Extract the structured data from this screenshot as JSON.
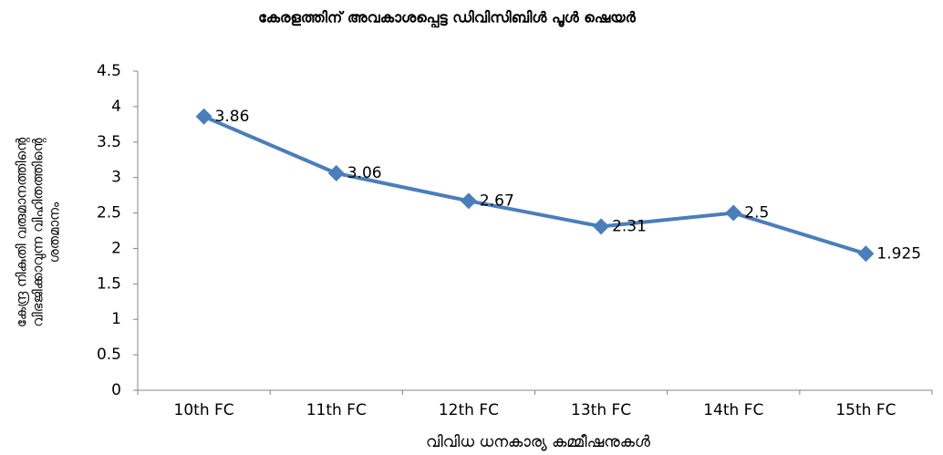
{
  "chart_data": {
    "type": "line",
    "title": "കേരളത്തിന് അവകാശപ്പെട്ട ഡിവിസിബിൾ പൂൾ ഷെയർ",
    "ylabel": [
      "കേന്ദ്ര നികുതി വരുമാനത്തിന്റെ",
      "വിഭജിക്കാവുന്ന വിഹിതത്തിന്റെ",
      "ശതമാനം"
    ],
    "xlabel": "വിവിധ ധനകാര്യ കമ്മീഷനുകൾ",
    "categories": [
      "10th FC",
      "11th FC",
      "12th FC",
      "13th FC",
      "14th FC",
      "15th FC"
    ],
    "series": [
      {
        "name": null,
        "color": "#4a7ebb",
        "values": [
          3.86,
          3.06,
          2.67,
          2.31,
          2.5,
          1.925
        ]
      }
    ],
    "ylim": [
      0,
      4.5
    ],
    "yticks": [
      0,
      0.5,
      1,
      1.5,
      2,
      2.5,
      3,
      3.5,
      4,
      4.5
    ],
    "grid": false
  }
}
